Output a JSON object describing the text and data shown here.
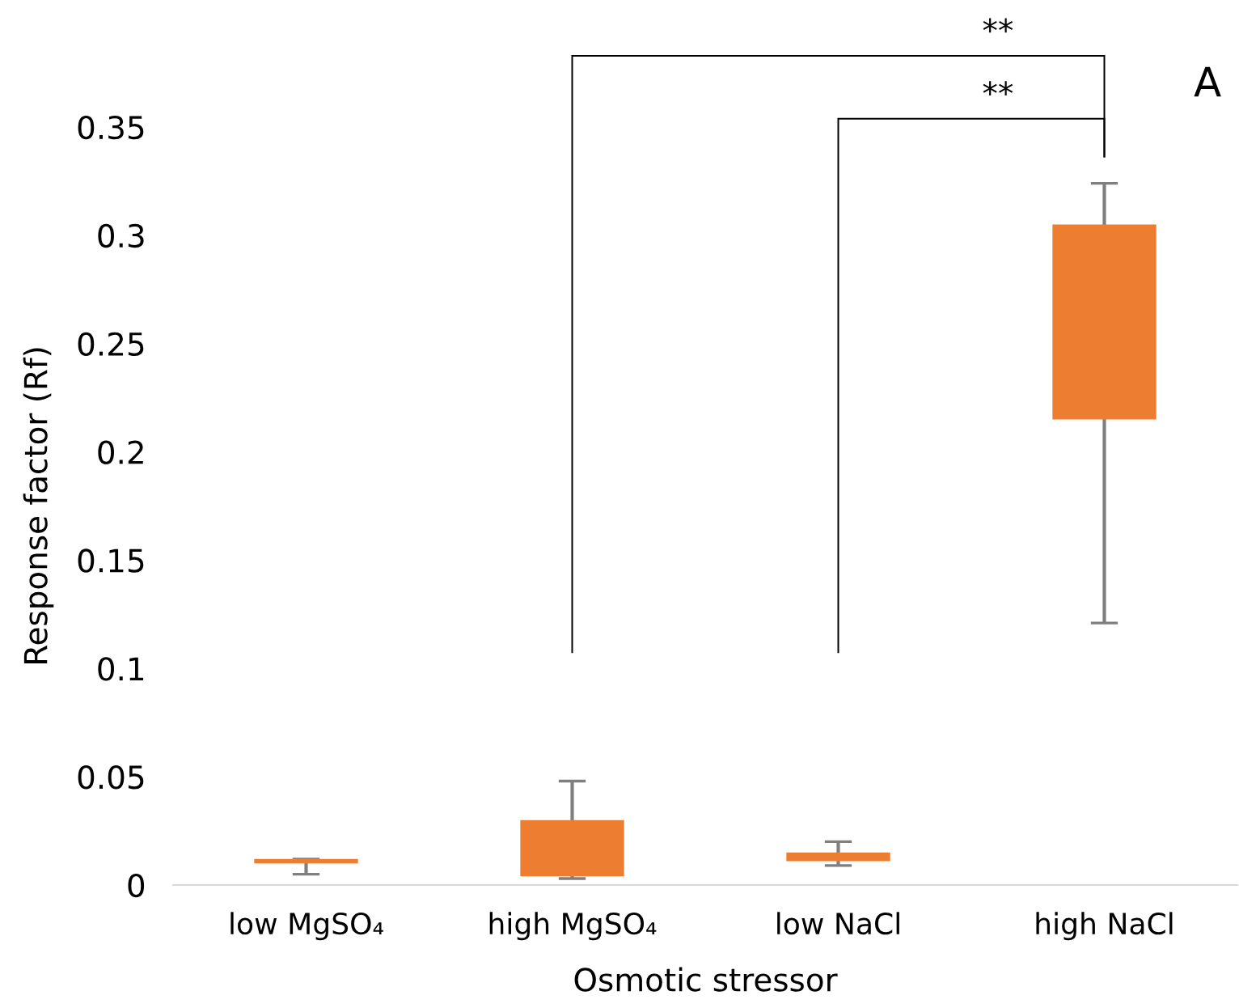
{
  "chart_data": {
    "type": "bar",
    "xlabel": "Osmotic stressor",
    "ylabel": "Response factor (Rf)",
    "categories": [
      "low MgSO₄",
      "high MgSO₄",
      "low NaCl",
      "high NaCl"
    ],
    "base": [
      0.01,
      0.004,
      0.011,
      0.215
    ],
    "values": [
      0.002,
      0.026,
      0.004,
      0.09
    ],
    "errors": [
      [
        0.005,
        0.012
      ],
      [
        0.003,
        0.048
      ],
      [
        0.009,
        0.02
      ],
      [
        0.121,
        0.324
      ]
    ],
    "color": "#ed7d31",
    "ylim": [
      0,
      0.35
    ],
    "yticks": [
      {
        "value": 0,
        "label": "0"
      },
      0.05,
      {
        "value": 0.1,
        "label": "0.1"
      },
      0.15,
      {
        "value": 0.2,
        "label": "0.2"
      },
      0.25,
      {
        "value": 0.3,
        "label": "0.3"
      },
      0.35
    ],
    "grid": false,
    "annotations": [
      "**",
      "**",
      "A"
    ]
  }
}
